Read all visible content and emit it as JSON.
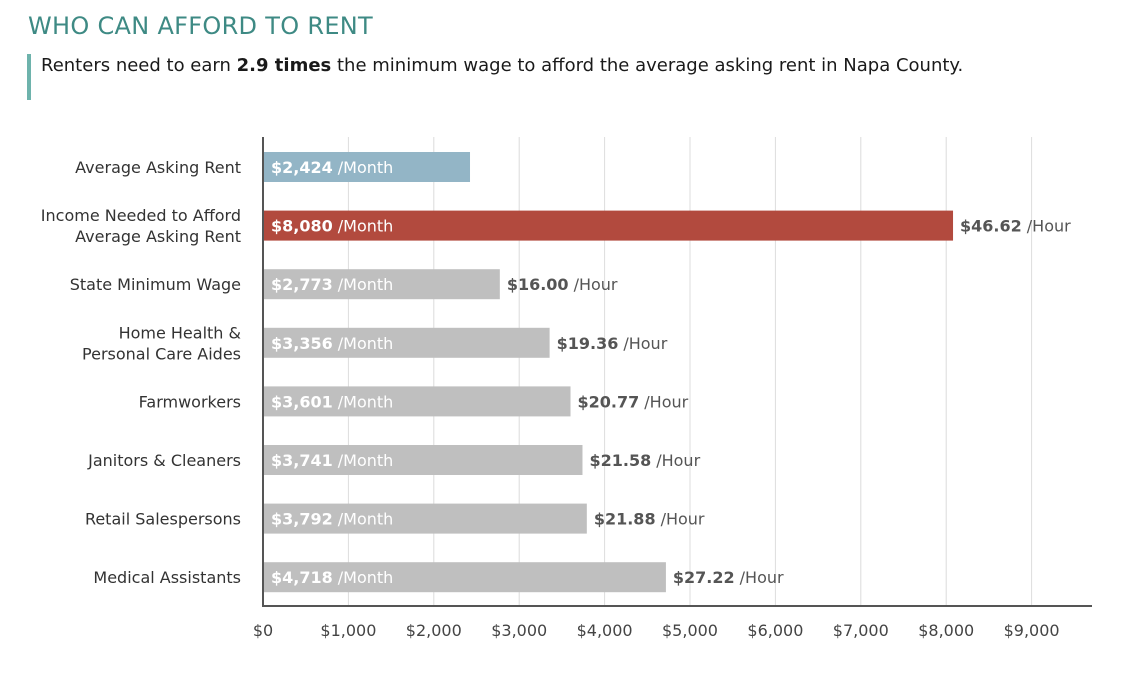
{
  "title": "WHO CAN AFFORD TO RENT",
  "subtitle": {
    "prefix": "Renters need to earn",
    "highlight": "2.9 times",
    "suffix": "the minimum wage to afford the average asking rent in Napa County."
  },
  "chart_data": {
    "type": "bar",
    "orientation": "horizontal",
    "categories": [
      [
        "Average Asking Rent"
      ],
      [
        "Income Needed to Afford",
        "Average Asking Rent"
      ],
      [
        "State Minimum Wage"
      ],
      [
        "Home Health &",
        "Personal Care Aides"
      ],
      [
        "Farmworkers"
      ],
      [
        "Janitors & Cleaners"
      ],
      [
        "Retail Salespersons"
      ],
      [
        "Medical Assistants"
      ]
    ],
    "values": [
      2424,
      8080,
      2773,
      3356,
      3601,
      3741,
      3792,
      4718
    ],
    "value_labels": [
      "$2,424",
      "$8,080",
      "$2,773",
      "$3,356",
      "$3,601",
      "$3,741",
      "$3,792",
      "$4,718"
    ],
    "value_unit": "/Month",
    "hourly_labels": [
      null,
      "$46.62",
      "$16.00",
      "$19.36",
      "$20.77",
      "$21.58",
      "$21.88",
      "$27.22"
    ],
    "hourly_unit": "/Hour",
    "bar_colors": [
      "#93b5c6",
      "#b24a3e",
      "#bfbfbf",
      "#bfbfbf",
      "#bfbfbf",
      "#bfbfbf",
      "#bfbfbf",
      "#bfbfbf"
    ],
    "xlim": [
      0,
      9000
    ],
    "xticks": [
      0,
      1000,
      2000,
      3000,
      4000,
      5000,
      6000,
      7000,
      8000,
      9000
    ],
    "xtick_labels": [
      "$0",
      "$1,000",
      "$2,000",
      "$3,000",
      "$4,000",
      "$5,000",
      "$6,000",
      "$7,000",
      "$8,000",
      "$9,000"
    ],
    "grid": "vertical",
    "xlabel": "",
    "ylabel": ""
  }
}
